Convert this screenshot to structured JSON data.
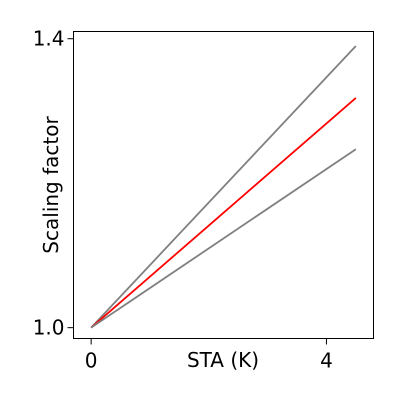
{
  "chart_data": {
    "type": "line",
    "title": "",
    "xlabel": "STA (K)",
    "ylabel": "Scaling factor",
    "xlim": [
      -0.3,
      4.8
    ],
    "ylim": [
      0.985,
      1.41
    ],
    "xticks": [
      0,
      4
    ],
    "xtick_labels": [
      "0",
      "4"
    ],
    "yticks": [
      1.0,
      1.4
    ],
    "ytick_labels": [
      "1.0",
      "1.4"
    ],
    "grid": false,
    "legend": "none",
    "series": [
      {
        "x": [
          0,
          4.5
        ],
        "y": [
          1.0,
          1.39
        ],
        "color": "#808080"
      },
      {
        "x": [
          0,
          4.5
        ],
        "y": [
          1.0,
          1.318
        ],
        "color": "#ff0000"
      },
      {
        "x": [
          0,
          4.5
        ],
        "y": [
          1.0,
          1.247
        ],
        "color": "#808080"
      }
    ]
  }
}
